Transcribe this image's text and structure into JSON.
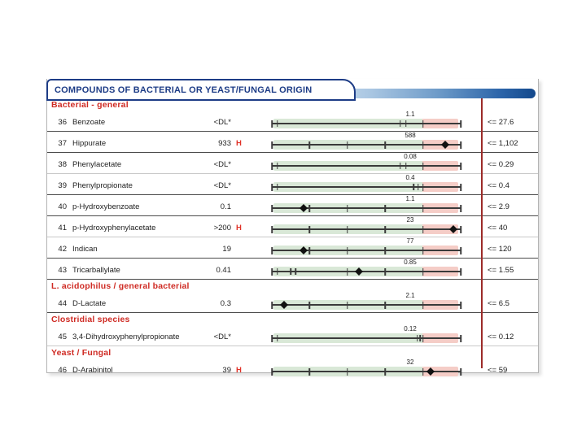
{
  "banner": {
    "title": "COMPOUNDS OF BACTERIAL OR YEAST/FUNGAL ORIGIN"
  },
  "colors": {
    "navy": "#1d3c86",
    "section_red": "#cf2b24",
    "flag_red": "#e03127",
    "green_zone": "#d9e8d7",
    "pink_zone": "#f5cdc7",
    "axis": "#3a3a3a",
    "limit_line_red": "#9c2b29",
    "gradient_start": "#cfdfee",
    "gradient_end": "#14498c"
  },
  "layout_meta": {
    "boundary_pct": 80,
    "default_ticks": [
      0,
      20,
      40,
      60,
      80,
      100
    ]
  },
  "sections": [
    {
      "label": "Bacterial - general",
      "rows": [
        {
          "num": "36",
          "name": "Benzoate",
          "value": "<DL*",
          "flag": "",
          "boundary": "1.1",
          "limit": "<= 27.6",
          "marker_pct": null,
          "bracket": [
            3,
            68
          ],
          "extra_tick": 71,
          "separator": "dark"
        },
        {
          "num": "37",
          "name": "Hippurate",
          "value": "933",
          "flag": "H",
          "boundary": "588",
          "limit": "<= 1,102",
          "marker_pct": 92,
          "separator": "dark"
        },
        {
          "num": "38",
          "name": "Phenylacetate",
          "value": "<DL*",
          "flag": "",
          "boundary": "0.08",
          "limit": "<= 0.29",
          "marker_pct": null,
          "bracket": [
            3,
            68
          ],
          "extra_tick": 71,
          "separator": "light"
        },
        {
          "num": "39",
          "name": "Phenylpropionate",
          "value": "<DL*",
          "flag": "",
          "boundary": "0.4",
          "limit": "<= 0.4",
          "marker_pct": null,
          "bracket": [
            3,
            75
          ],
          "extra_tick": 77.5,
          "separator": "dark"
        },
        {
          "num": "40",
          "name": "p-Hydroxybenzoate",
          "value": "0.1",
          "flag": "",
          "boundary": "1.1",
          "limit": "<= 2.9",
          "marker_pct": 17,
          "separator": "dark"
        },
        {
          "num": "41",
          "name": "p-Hydroxyphenylacetate",
          "value": ">200",
          "flag": "H",
          "boundary": "23",
          "limit": "<= 40",
          "marker_pct": 96,
          "separator": "light"
        },
        {
          "num": "42",
          "name": "Indican",
          "value": "19",
          "flag": "",
          "boundary": "77",
          "limit": "<= 120",
          "marker_pct": 17,
          "separator": "dark"
        },
        {
          "num": "43",
          "name": "Tricarballylate",
          "value": "0.41",
          "flag": "",
          "boundary": "0.85",
          "limit": "<= 1.55",
          "marker_pct": 46,
          "bracket": [
            3,
            10
          ],
          "extra_tick": 12.5,
          "ticks": [
            0,
            40,
            60,
            80,
            100
          ],
          "separator": "dark"
        }
      ]
    },
    {
      "label": "L. acidophilus / general bacterial",
      "rows": [
        {
          "num": "44",
          "name": "D-Lactate",
          "value": "0.3",
          "flag": "",
          "boundary": "2.1",
          "limit": "<= 6.5",
          "marker_pct": 6.5,
          "separator": "dark"
        }
      ]
    },
    {
      "label": "Clostridial species",
      "rows": [
        {
          "num": "45",
          "name": "3,4-Dihydroxyphenylpropionate",
          "value": "<DL*",
          "flag": "",
          "boundary": "0.12",
          "limit": "<= 0.12",
          "marker_pct": null,
          "bracket": [
            3,
            77
          ],
          "extra_tick": 78.5,
          "separator": "light"
        }
      ]
    },
    {
      "label": "Yeast / Fungal",
      "rows": [
        {
          "num": "46",
          "name": "D-Arabinitol",
          "value": "39",
          "flag": "H",
          "boundary": "32",
          "limit": "<= 59",
          "marker_pct": 84,
          "separator": "none"
        }
      ]
    }
  ]
}
